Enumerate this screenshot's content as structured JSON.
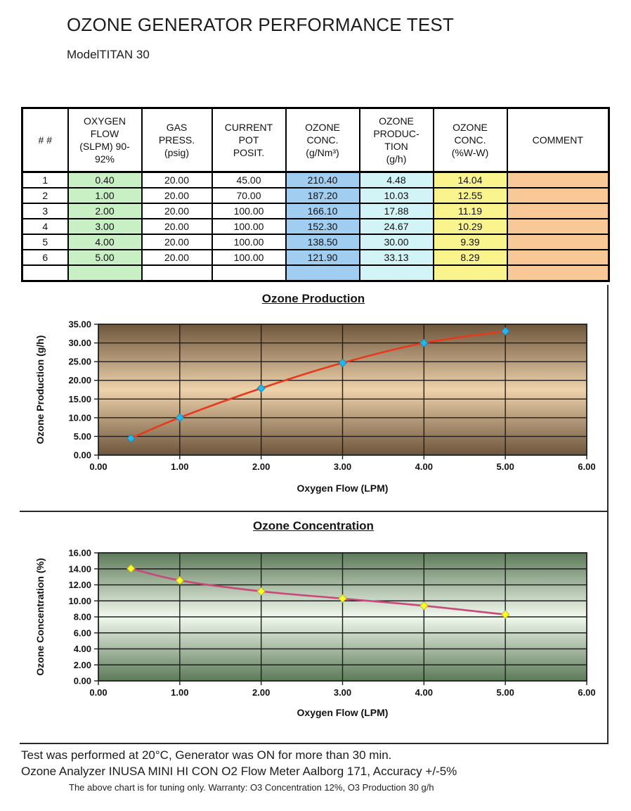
{
  "page_title": "OZONE GENERATOR PERFORMANCE TEST",
  "model_label": "ModelTITAN 30",
  "table": {
    "headers": [
      "# #",
      "OXYGEN\nFLOW\n(SLPM) 90-\n92%",
      "GAS\nPRESS.\n(psig)",
      "CURRENT\nPOT\nPOSIT.",
      "OZONE\nCONC.\n(g/Nm³)",
      "OZONE\nPRODUC-\nTION\n(g/h)",
      "OZONE\nCONC.\n(%W-W)",
      "COMMENT"
    ],
    "rows": [
      [
        "1",
        "0.40",
        "20.00",
        "45.00",
        "210.40",
        "4.48",
        "14.04",
        ""
      ],
      [
        "2",
        "1.00",
        "20.00",
        "70.00",
        "187.20",
        "10.03",
        "12.55",
        ""
      ],
      [
        "3",
        "2.00",
        "20.00",
        "100.00",
        "166.10",
        "17.88",
        "11.19",
        ""
      ],
      [
        "4",
        "3.00",
        "20.00",
        "100.00",
        "152.30",
        "24.67",
        "10.29",
        ""
      ],
      [
        "5",
        "4.00",
        "20.00",
        "100.00",
        "138.50",
        "30.00",
        "9.39",
        ""
      ],
      [
        "6",
        "5.00",
        "20.00",
        "100.00",
        "121.90",
        "33.13",
        "8.29",
        ""
      ],
      [
        "",
        "",
        "",
        "",
        "",
        "",
        "",
        ""
      ]
    ],
    "column_colors": [
      "",
      "#c9efc5",
      "",
      "",
      "#a0cdf0",
      "#d2f4f6",
      "#faf48f",
      "#f8c897"
    ]
  },
  "chart_data": [
    {
      "type": "line",
      "title": "Ozone Production",
      "xlabel": "Oxygen Flow (LPM)",
      "ylabel": "Ozone Production (g/h)",
      "x": [
        0.4,
        1.0,
        2.0,
        3.0,
        4.0,
        5.0
      ],
      "series": [
        {
          "name": "Ozone Production (g/h)",
          "values": [
            4.48,
            10.03,
            17.88,
            24.67,
            30.0,
            33.13
          ]
        }
      ],
      "xlim": [
        0,
        6
      ],
      "ylim": [
        0,
        35
      ],
      "x_tick_step": 1,
      "y_tick_step": 5,
      "grid": true,
      "legend": "none",
      "line_color": "#e8391f",
      "marker_color": "#29b7e8",
      "marker_edge": "#1687b8",
      "bg_gradient": [
        "#6e563c",
        "#eed2ab",
        "#6e563c"
      ]
    },
    {
      "type": "line",
      "title": "Ozone Concentration",
      "xlabel": "Oxygen Flow (LPM)",
      "ylabel": "Ozone Concentration (%)",
      "x": [
        0.4,
        1.0,
        2.0,
        3.0,
        4.0,
        5.0
      ],
      "series": [
        {
          "name": "Ozone Concentration (%)",
          "values": [
            14.04,
            12.55,
            11.19,
            10.29,
            9.39,
            8.29
          ]
        }
      ],
      "xlim": [
        0,
        6
      ],
      "ylim": [
        0,
        16
      ],
      "x_tick_step": 1,
      "y_tick_step": 2,
      "grid": true,
      "legend": "none",
      "line_color": "#c9497c",
      "marker_color": "#ffff2e",
      "marker_edge": "#b9b925",
      "bg_gradient": [
        "#5c7a58",
        "#f2f9ee",
        "#5c7a58"
      ]
    }
  ],
  "footer": {
    "line1": "Test was performed at 20°C, Generator was ON for more than 30 min.",
    "line2": "Ozone Analyzer INUSA MINI HI CON O2 Flow Meter Aalborg 171, Accuracy +/-5%",
    "line3": "The above chart is for tuning only. Warranty: O3 Concentration 12%, O3 Production 30 g/h"
  }
}
